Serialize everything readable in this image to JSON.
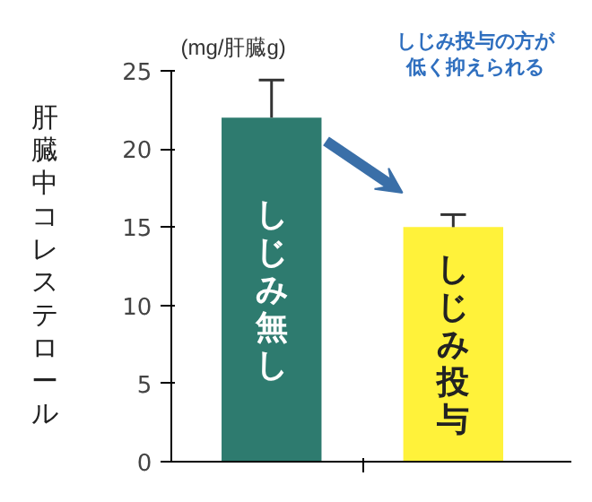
{
  "chart_data": {
    "type": "bar",
    "ylabel": "肝臓中コレステロール",
    "categories": [
      "しじみ無し",
      "しじみ投与"
    ],
    "values": [
      22,
      15
    ],
    "colors": [
      "#2e7b6f",
      "#fff23a"
    ],
    "errors": [
      [
        22,
        24.4
      ],
      [
        15,
        15.8
      ]
    ],
    "ylim": [
      0,
      25
    ],
    "yticks": [
      0,
      5,
      10,
      15,
      20,
      25
    ],
    "grid": false,
    "annotations": [
      "(mg/肝臓g)",
      "しじみ投与の方が低く抑えられる"
    ]
  }
}
